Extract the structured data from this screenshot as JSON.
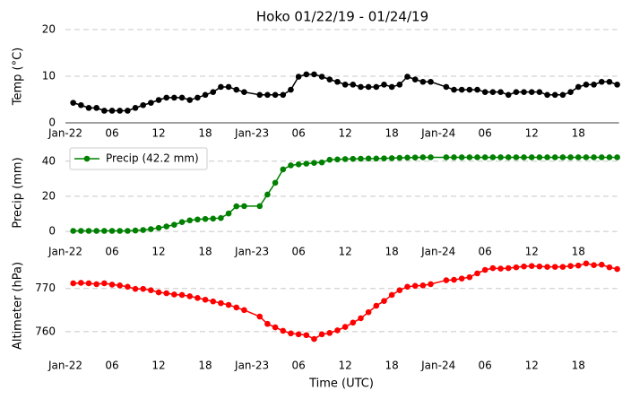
{
  "chart_data": [
    {
      "type": "line",
      "title": "Hoko 01/22/19 - 01/24/19",
      "ylabel": "Temp (°C)",
      "x": [
        1,
        2,
        3,
        4,
        5,
        6,
        7,
        8,
        9,
        10,
        11,
        12,
        13,
        14,
        15,
        16,
        17,
        18,
        19,
        20,
        21,
        22,
        23,
        25,
        26,
        27,
        28,
        29,
        30,
        31,
        32,
        33,
        34,
        35,
        36,
        37,
        38,
        39,
        40,
        41,
        42,
        43,
        44,
        45,
        46,
        47,
        49,
        50,
        51,
        52,
        53,
        54,
        55,
        56,
        57,
        58,
        59,
        60,
        61,
        62,
        63,
        64,
        65,
        66,
        67,
        68,
        69,
        70,
        71
      ],
      "series": [
        {
          "color": "#000000",
          "values": [
            4.3,
            3.8,
            3.2,
            3.2,
            2.6,
            2.6,
            2.6,
            2.6,
            3.2,
            3.8,
            4.3,
            4.9,
            5.4,
            5.4,
            5.4,
            4.9,
            5.4,
            6.0,
            6.6,
            7.7,
            7.7,
            7.1,
            6.6,
            6.0,
            6.0,
            6.0,
            6.0,
            7.1,
            9.9,
            10.4,
            10.4,
            9.9,
            9.3,
            8.8,
            8.2,
            8.2,
            7.7,
            7.7,
            7.7,
            8.2,
            7.7,
            8.2,
            9.9,
            9.3,
            8.8,
            8.8,
            7.7,
            7.1,
            7.1,
            7.1,
            7.1,
            6.6,
            6.6,
            6.6,
            6.0,
            6.6,
            6.6,
            6.6,
            6.6,
            6.0,
            6.0,
            6.0,
            6.6,
            7.7,
            8.2,
            8.2,
            8.8,
            8.8,
            8.2
          ]
        }
      ],
      "xlim": [
        0,
        71
      ],
      "xticks": [
        {
          "value": 0,
          "label": "Jan-22"
        },
        {
          "value": 6,
          "label": "06"
        },
        12,
        18,
        {
          "value": 24,
          "label": "Jan-23"
        },
        {
          "value": 30,
          "label": "06"
        },
        {
          "value": 36,
          "label": "12"
        },
        {
          "value": 42,
          "label": "18"
        },
        {
          "value": 48,
          "label": "Jan-24"
        },
        {
          "value": 54,
          "label": "06"
        },
        {
          "value": 60,
          "label": "12"
        },
        {
          "value": 66,
          "label": "18"
        }
      ],
      "ylim": [
        0,
        20
      ],
      "yticks": [
        0,
        10,
        20
      ],
      "grid": true
    },
    {
      "type": "line",
      "ylabel": "Precip (mm)",
      "x": [
        1,
        2,
        3,
        4,
        5,
        6,
        7,
        8,
        9,
        10,
        11,
        12,
        13,
        14,
        15,
        16,
        17,
        18,
        19,
        20,
        21,
        22,
        23,
        25,
        26,
        27,
        28,
        29,
        30,
        31,
        32,
        33,
        34,
        35,
        36,
        37,
        38,
        39,
        40,
        41,
        42,
        43,
        44,
        45,
        46,
        47,
        49,
        50,
        51,
        52,
        53,
        54,
        55,
        56,
        57,
        58,
        59,
        60,
        61,
        62,
        63,
        64,
        65,
        66,
        67,
        68,
        69,
        70,
        71
      ],
      "series": [
        {
          "name": "Precip (42.2 mm)",
          "color": "#008000",
          "values": [
            0.3,
            0.3,
            0.3,
            0.3,
            0.3,
            0.3,
            0.3,
            0.3,
            0.5,
            0.8,
            1.3,
            2.0,
            2.8,
            3.8,
            5.3,
            6.3,
            6.8,
            7.1,
            7.3,
            7.6,
            10.2,
            14.3,
            14.4,
            14.4,
            21.0,
            27.7,
            35.3,
            37.6,
            38.2,
            38.6,
            39.0,
            39.3,
            40.8,
            41.0,
            41.2,
            41.3,
            41.4,
            41.5,
            41.5,
            41.6,
            41.7,
            41.9,
            42.0,
            42.1,
            42.2,
            42.2,
            42.2,
            42.2,
            42.2,
            42.2,
            42.2,
            42.2,
            42.2,
            42.2,
            42.2,
            42.2,
            42.2,
            42.2,
            42.2,
            42.2,
            42.2,
            42.2,
            42.2,
            42.2,
            42.2,
            42.2,
            42.2,
            42.2,
            42.2
          ]
        }
      ],
      "xlim": [
        0,
        71
      ],
      "xticks": [
        {
          "value": 0,
          "label": "Jan-22"
        },
        {
          "value": 6,
          "label": "06"
        },
        12,
        18,
        {
          "value": 24,
          "label": "Jan-23"
        },
        {
          "value": 30,
          "label": "06"
        },
        {
          "value": 36,
          "label": "12"
        },
        {
          "value": 42,
          "label": "18"
        },
        {
          "value": 48,
          "label": "Jan-24"
        },
        {
          "value": 54,
          "label": "06"
        },
        {
          "value": 60,
          "label": "12"
        },
        {
          "value": 66,
          "label": "18"
        }
      ],
      "ylim": [
        -2,
        46
      ],
      "yticks": [
        0,
        20,
        40
      ],
      "grid": true,
      "legend": "upper left"
    },
    {
      "type": "line",
      "ylabel": "Altimeter (hPa)",
      "xlabel": "Time (UTC)",
      "x": [
        1,
        2,
        3,
        4,
        5,
        6,
        7,
        8,
        9,
        10,
        11,
        12,
        13,
        14,
        15,
        16,
        17,
        18,
        19,
        20,
        21,
        22,
        23,
        25,
        26,
        27,
        28,
        29,
        30,
        31,
        32,
        33,
        34,
        35,
        36,
        37,
        38,
        39,
        40,
        41,
        42,
        43,
        44,
        45,
        46,
        47,
        49,
        50,
        51,
        52,
        53,
        54,
        55,
        56,
        57,
        58,
        59,
        60,
        61,
        62,
        63,
        64,
        65,
        66,
        67,
        68,
        69,
        70,
        71
      ],
      "series": [
        {
          "color": "#ff0000",
          "values": [
            771.2,
            771.3,
            771.2,
            771.0,
            771.2,
            770.9,
            770.7,
            770.4,
            769.9,
            769.9,
            769.6,
            769.1,
            768.9,
            768.6,
            768.5,
            768.2,
            767.8,
            767.4,
            767.0,
            766.6,
            766.2,
            765.6,
            765.0,
            763.5,
            761.8,
            761.0,
            760.2,
            759.6,
            759.4,
            759.2,
            758.3,
            759.4,
            759.7,
            760.3,
            761.1,
            762.1,
            763.1,
            764.5,
            766.0,
            767.1,
            768.5,
            769.6,
            770.4,
            770.6,
            770.7,
            771.0,
            771.9,
            772.0,
            772.3,
            772.6,
            773.5,
            774.3,
            774.7,
            774.6,
            774.7,
            774.9,
            775.1,
            775.2,
            775.1,
            775.0,
            775.0,
            775.0,
            775.2,
            775.3,
            775.8,
            775.4,
            775.5,
            774.9,
            774.5
          ]
        }
      ],
      "xlim": [
        0,
        71
      ],
      "xticks": [
        {
          "value": 0,
          "label": "Jan-22"
        },
        {
          "value": 6,
          "label": "06"
        },
        12,
        18,
        {
          "value": 24,
          "label": "Jan-23"
        },
        {
          "value": 30,
          "label": "06"
        },
        {
          "value": 36,
          "label": "12"
        },
        {
          "value": 42,
          "label": "18"
        },
        {
          "value": 48,
          "label": "Jan-24"
        },
        {
          "value": 54,
          "label": "06"
        },
        {
          "value": 60,
          "label": "12"
        },
        {
          "value": 66,
          "label": "18"
        }
      ],
      "ylim": [
        755,
        777
      ],
      "yticks": [
        760,
        770
      ],
      "grid": true
    }
  ]
}
